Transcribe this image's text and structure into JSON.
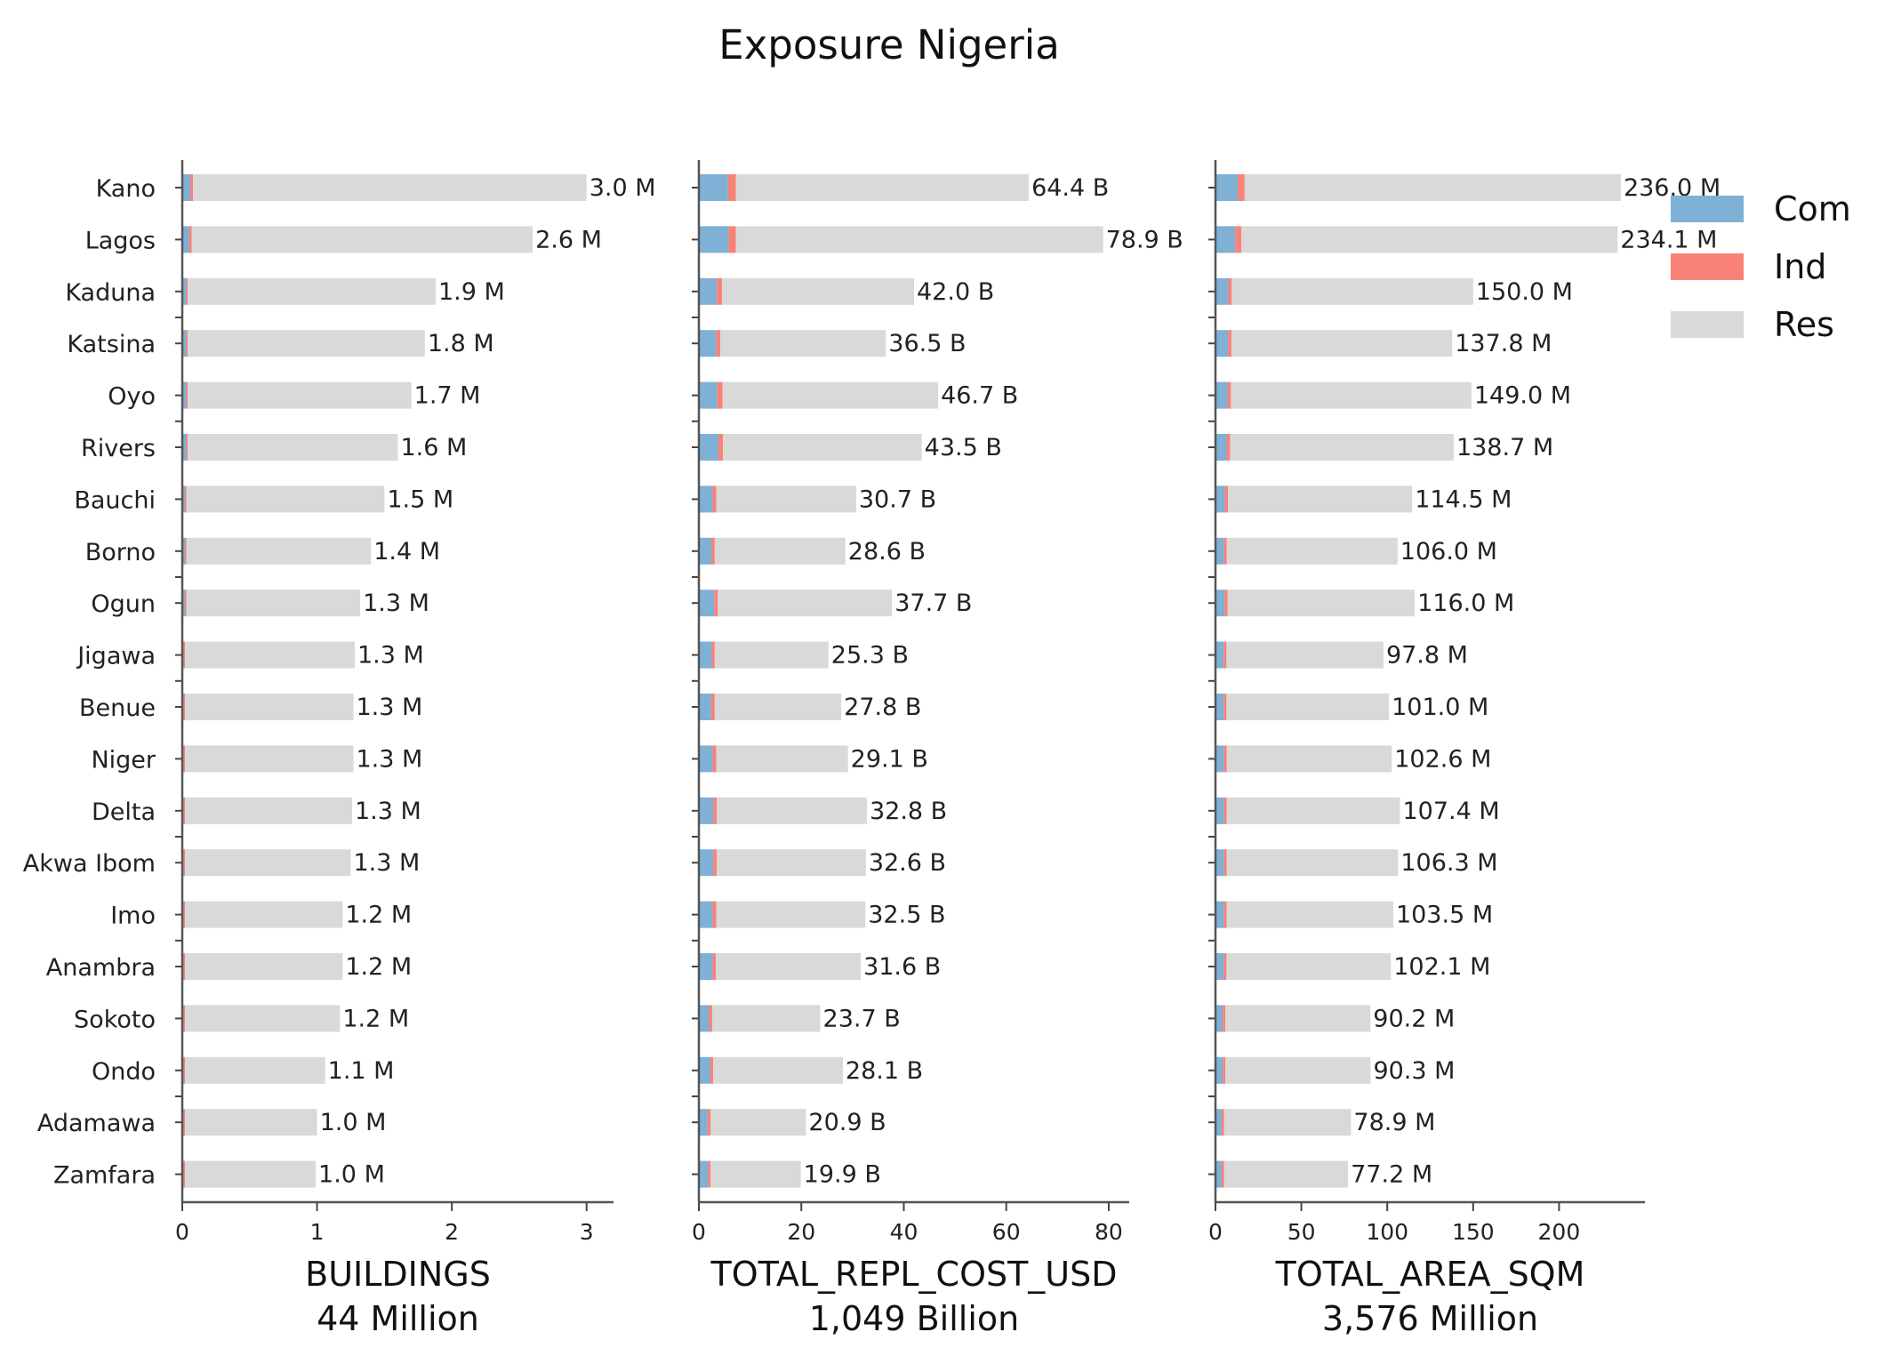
{
  "title": "Exposure Nigeria",
  "colors": {
    "Com": "#7fb0d5",
    "Ind": "#f98277",
    "Res": "#d9d9d9"
  },
  "legend": {
    "position": "top-right",
    "items": [
      "Com",
      "Ind",
      "Res"
    ]
  },
  "chart_data": [
    {
      "type": "bar",
      "orientation": "horizontal",
      "stacked": true,
      "xlabel": "BUILDINGS",
      "total_label": "44 Million",
      "unit": "M",
      "xlim": [
        0,
        3.2
      ],
      "xticks": [
        0,
        1,
        2,
        3
      ],
      "categories": [
        "Kano",
        "Lagos",
        "Kaduna",
        "Katsina",
        "Oyo",
        "Rivers",
        "Bauchi",
        "Borno",
        "Ogun",
        "Jigawa",
        "Benue",
        "Niger",
        "Delta",
        "Akwa Ibom",
        "Imo",
        "Anambra",
        "Sokoto",
        "Ondo",
        "Adamawa",
        "Zamfara"
      ],
      "labels": [
        "3.0 M",
        "2.6 M",
        "1.9 M",
        "1.8 M",
        "1.7 M",
        "1.6 M",
        "1.5 M",
        "1.4 M",
        "1.3 M",
        "1.3 M",
        "1.3 M",
        "1.3 M",
        "1.3 M",
        "1.3 M",
        "1.2 M",
        "1.2 M",
        "1.2 M",
        "1.1 M",
        "1.0 M",
        "1.0 M"
      ],
      "series": [
        {
          "name": "Com",
          "values": [
            0.06,
            0.05,
            0.03,
            0.03,
            0.03,
            0.03,
            0.02,
            0.02,
            0.02,
            0.01,
            0.01,
            0.01,
            0.01,
            0.01,
            0.01,
            0.01,
            0.01,
            0.01,
            0.01,
            0.01
          ]
        },
        {
          "name": "Ind",
          "values": [
            0.02,
            0.02,
            0.01,
            0.01,
            0.01,
            0.01,
            0.01,
            0.01,
            0.01,
            0.01,
            0.01,
            0.01,
            0.01,
            0.01,
            0.01,
            0.01,
            0.01,
            0.01,
            0.01,
            0.01
          ]
        },
        {
          "name": "Res",
          "values": [
            2.92,
            2.53,
            1.84,
            1.76,
            1.66,
            1.56,
            1.47,
            1.37,
            1.29,
            1.26,
            1.25,
            1.25,
            1.24,
            1.23,
            1.17,
            1.17,
            1.15,
            1.04,
            0.98,
            0.97
          ]
        }
      ]
    },
    {
      "type": "bar",
      "orientation": "horizontal",
      "stacked": true,
      "xlabel": "TOTAL_REPL_COST_USD",
      "total_label": "1,049 Billion",
      "unit": "B",
      "xlim": [
        0,
        84
      ],
      "xticks": [
        0,
        20,
        40,
        60,
        80
      ],
      "categories": [
        "Kano",
        "Lagos",
        "Kaduna",
        "Katsina",
        "Oyo",
        "Rivers",
        "Bauchi",
        "Borno",
        "Ogun",
        "Jigawa",
        "Benue",
        "Niger",
        "Delta",
        "Akwa Ibom",
        "Imo",
        "Anambra",
        "Sokoto",
        "Ondo",
        "Adamawa",
        "Zamfara"
      ],
      "labels": [
        "64.4 B",
        "78.9 B",
        "42.0 B",
        "36.5 B",
        "46.7 B",
        "43.5 B",
        "30.7 B",
        "28.6 B",
        "37.7 B",
        "25.3 B",
        "27.8 B",
        "29.1 B",
        "32.8 B",
        "32.6 B",
        "32.5 B",
        "31.6 B",
        "23.7 B",
        "28.1 B",
        "20.9 B",
        "19.9 B"
      ],
      "series": [
        {
          "name": "Com",
          "values": [
            5.7,
            5.8,
            3.5,
            3.4,
            3.6,
            3.8,
            2.7,
            2.5,
            3.0,
            2.5,
            2.4,
            2.7,
            2.8,
            2.8,
            2.7,
            2.7,
            2.0,
            2.2,
            1.7,
            1.8
          ]
        },
        {
          "name": "Ind",
          "values": [
            1.5,
            1.4,
            1.0,
            0.8,
            1.0,
            0.9,
            0.7,
            0.6,
            0.7,
            0.6,
            0.7,
            0.7,
            0.7,
            0.7,
            0.7,
            0.6,
            0.6,
            0.6,
            0.6,
            0.5
          ]
        },
        {
          "name": "Res",
          "values": [
            57.2,
            71.7,
            37.5,
            32.3,
            42.1,
            38.8,
            27.3,
            25.5,
            34.0,
            22.2,
            24.7,
            25.7,
            29.3,
            29.1,
            29.1,
            28.3,
            21.1,
            25.3,
            18.6,
            17.6
          ]
        }
      ]
    },
    {
      "type": "bar",
      "orientation": "horizontal",
      "stacked": true,
      "xlabel": "TOTAL_AREA_SQM",
      "total_label": "3,576 Million",
      "unit": "M",
      "xlim": [
        0,
        250
      ],
      "xticks": [
        0,
        50,
        100,
        150,
        200
      ],
      "categories": [
        "Kano",
        "Lagos",
        "Kaduna",
        "Katsina",
        "Oyo",
        "Rivers",
        "Bauchi",
        "Borno",
        "Ogun",
        "Jigawa",
        "Benue",
        "Niger",
        "Delta",
        "Akwa Ibom",
        "Imo",
        "Anambra",
        "Sokoto",
        "Ondo",
        "Adamawa",
        "Zamfara"
      ],
      "labels": [
        "236.0 M",
        "234.1 M",
        "150.0 M",
        "137.8 M",
        "149.0 M",
        "138.7 M",
        "114.5 M",
        "106.0 M",
        "116.0 M",
        "97.8 M",
        "101.0 M",
        "102.6 M",
        "107.4 M",
        "106.3 M",
        "103.5 M",
        "102.1 M",
        "90.2 M",
        "90.3 M",
        "78.9 M",
        "77.2 M"
      ],
      "series": [
        {
          "name": "Com",
          "values": [
            13.0,
            11.5,
            7.5,
            7.3,
            7.0,
            6.5,
            5.5,
            5.0,
            5.3,
            4.8,
            4.8,
            5.0,
            5.0,
            5.0,
            4.9,
            4.9,
            4.2,
            4.3,
            3.6,
            3.6
          ]
        },
        {
          "name": "Ind",
          "values": [
            4.0,
            3.5,
            2.0,
            2.0,
            2.0,
            2.0,
            1.8,
            1.6,
            1.8,
            1.6,
            1.6,
            1.6,
            1.6,
            1.6,
            1.6,
            1.5,
            1.5,
            1.5,
            1.4,
            1.4
          ]
        },
        {
          "name": "Res",
          "values": [
            219.0,
            219.1,
            140.5,
            128.5,
            140.0,
            130.2,
            107.2,
            99.4,
            108.9,
            91.4,
            94.6,
            96.0,
            100.8,
            99.7,
            97.0,
            95.7,
            84.5,
            84.5,
            73.9,
            72.2
          ]
        }
      ]
    }
  ]
}
